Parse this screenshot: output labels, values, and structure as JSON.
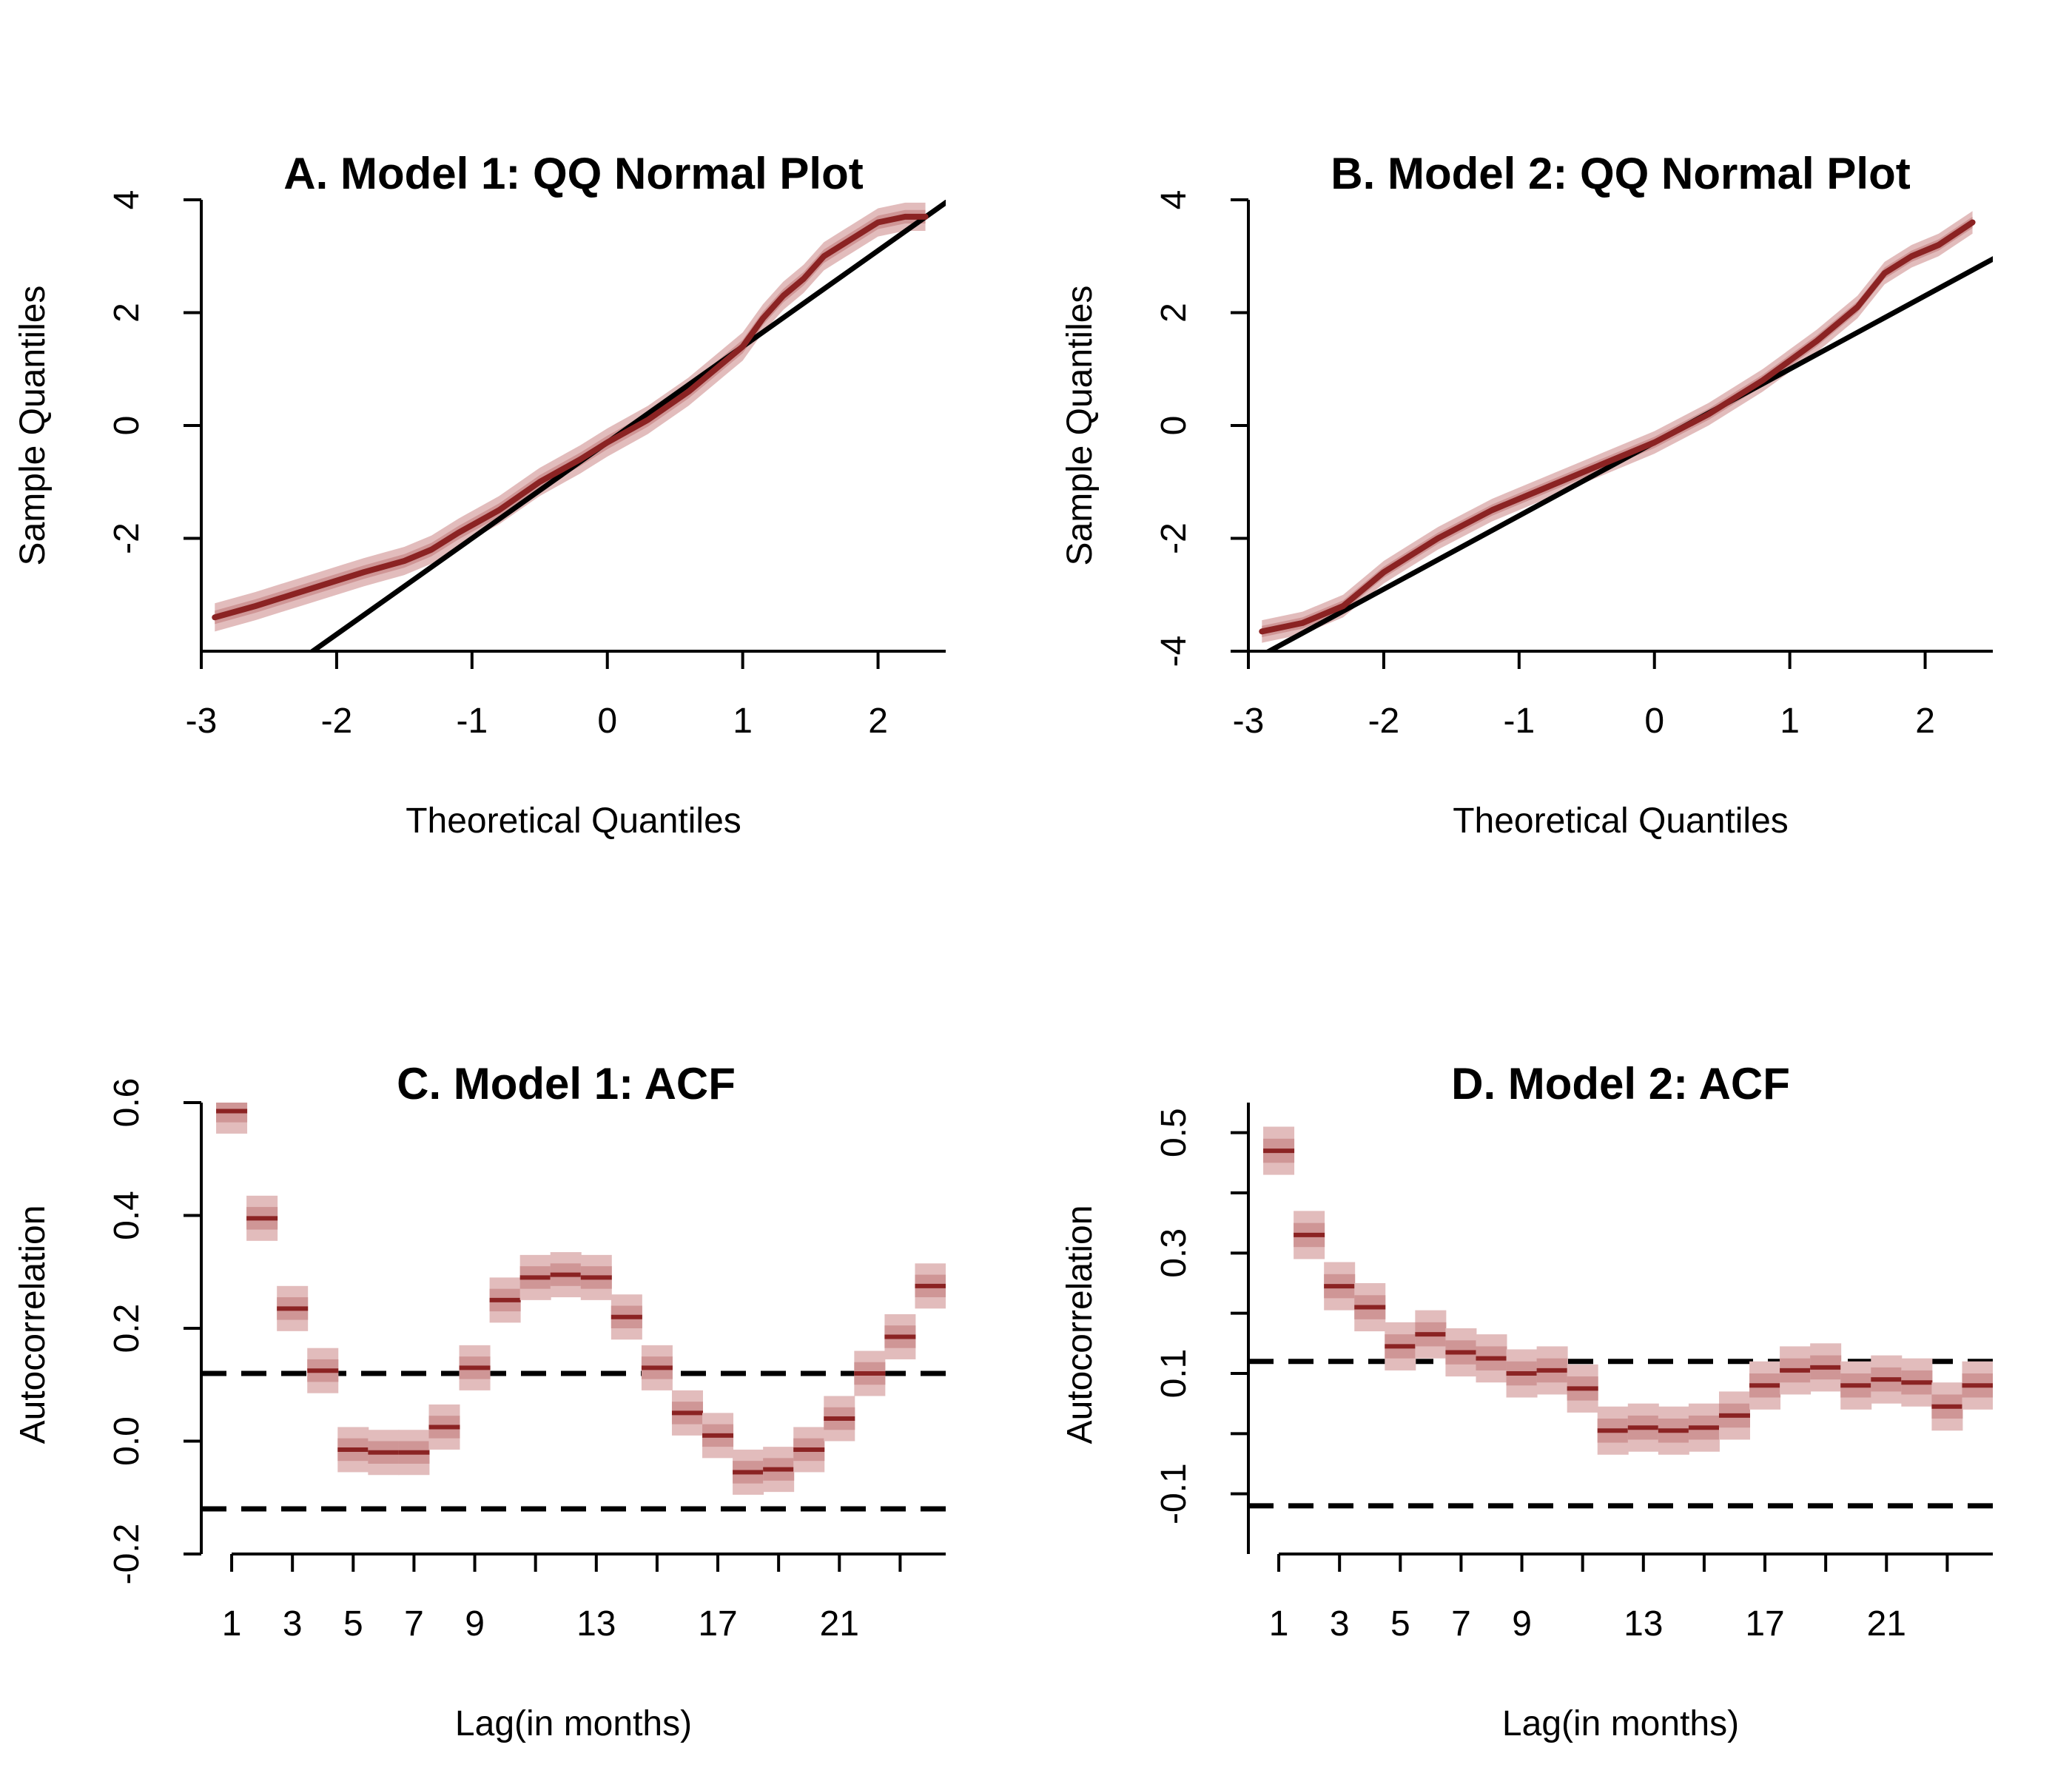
{
  "colors": {
    "series": "#8b2323",
    "band_outer": "#e2bcbc",
    "band_inner": "#cf9696",
    "reference": "#000000"
  },
  "chart_data": [
    {
      "id": "A",
      "type": "line",
      "title": "A. Model 1: QQ Normal Plot",
      "xlabel": "Theoretical Quantiles",
      "ylabel": "Sample Quantiles",
      "xlim": [
        -3,
        2.5
      ],
      "ylim": [
        -4,
        4
      ],
      "xticks": [
        -3,
        -2,
        -1,
        0,
        1,
        2
      ],
      "xtick_labels": [
        "-3",
        "-2",
        "-1",
        "0",
        "1",
        "2"
      ],
      "yticks": [
        -2,
        0,
        2,
        4
      ],
      "ytick_labels": [
        "-2",
        "0",
        "2",
        "4"
      ],
      "reference_line": {
        "intercept": -0.3,
        "slope": 1.7
      },
      "series": [
        {
          "x": [
            -2.9,
            -2.6,
            -2.2,
            -1.8,
            -1.5,
            -1.3,
            -1.1,
            -0.8,
            -0.5,
            -0.2,
            0.0,
            0.3,
            0.6,
            0.8,
            1.0,
            1.15,
            1.3,
            1.45,
            1.6,
            1.8,
            2.0,
            2.2,
            2.35
          ],
          "y": [
            -3.4,
            -3.2,
            -2.9,
            -2.6,
            -2.4,
            -2.2,
            -1.9,
            -1.5,
            -1.0,
            -0.6,
            -0.3,
            0.1,
            0.6,
            1.0,
            1.4,
            1.9,
            2.3,
            2.6,
            3.0,
            3.3,
            3.6,
            3.7,
            3.7
          ],
          "band_outer": 0.25,
          "band_inner": 0.12
        }
      ]
    },
    {
      "id": "B",
      "type": "line",
      "title": "B. Model 2: QQ Normal Plot",
      "xlabel": "Theoretical Quantiles",
      "ylabel": "Sample Quantiles",
      "xlim": [
        -3,
        2.5
      ],
      "ylim": [
        -4,
        4
      ],
      "xticks": [
        -3,
        -2,
        -1,
        0,
        1,
        2
      ],
      "xtick_labels": [
        "-3",
        "-2",
        "-1",
        "0",
        "1",
        "2"
      ],
      "yticks": [
        -4,
        -2,
        0,
        2,
        4
      ],
      "ytick_labels": [
        "-4",
        "-2",
        "0",
        "2",
        "4"
      ],
      "reference_line": {
        "intercept": -0.3,
        "slope": 1.3
      },
      "series": [
        {
          "x": [
            -2.9,
            -2.6,
            -2.3,
            -2.0,
            -1.6,
            -1.2,
            -0.8,
            -0.4,
            0.0,
            0.4,
            0.8,
            1.2,
            1.5,
            1.7,
            1.9,
            2.1,
            2.35
          ],
          "y": [
            -3.65,
            -3.5,
            -3.2,
            -2.6,
            -2.0,
            -1.5,
            -1.1,
            -0.7,
            -0.3,
            0.2,
            0.8,
            1.5,
            2.1,
            2.7,
            3.0,
            3.2,
            3.6
          ],
          "band_outer": 0.2,
          "band_inner": 0.1
        }
      ]
    },
    {
      "id": "C",
      "type": "scatter",
      "title": "C. Model 1: ACF",
      "xlabel": "Lag(in months)",
      "ylabel": "Autocorrelation",
      "xlim": [
        0,
        24.5
      ],
      "ylim": [
        -0.2,
        0.6
      ],
      "xticks": [
        1,
        3,
        5,
        7,
        9,
        11,
        13,
        15,
        17,
        19,
        21,
        23
      ],
      "xtick_labels": [
        "1",
        "3",
        "5",
        "7",
        "9",
        "",
        "13",
        "",
        "17",
        "",
        "21",
        ""
      ],
      "yticks": [
        -0.2,
        0.0,
        0.2,
        0.4,
        0.6
      ],
      "ytick_labels": [
        "-0.2",
        "0.0",
        "0.2",
        "0.4",
        "0.6"
      ],
      "confidence_bounds": [
        0.12,
        -0.12
      ],
      "series": [
        {
          "x": [
            1,
            2,
            3,
            4,
            5,
            6,
            7,
            8,
            9,
            10,
            11,
            12,
            13,
            14,
            15,
            16,
            17,
            18,
            19,
            20,
            21,
            22,
            23,
            24
          ],
          "y": [
            0.585,
            0.395,
            0.235,
            0.125,
            -0.015,
            -0.02,
            -0.02,
            0.025,
            0.13,
            0.25,
            0.29,
            0.295,
            0.29,
            0.22,
            0.13,
            0.05,
            0.01,
            -0.055,
            -0.05,
            -0.015,
            0.04,
            0.12,
            0.185,
            0.275
          ],
          "band_outer": 0.04,
          "band_inner": 0.02
        }
      ]
    },
    {
      "id": "D",
      "type": "scatter",
      "title": "D. Model 2: ACF",
      "xlabel": "Lag(in months)",
      "ylabel": "Autocorrelation",
      "xlim": [
        0,
        24.5
      ],
      "ylim": [
        -0.2,
        0.55
      ],
      "xticks": [
        1,
        3,
        5,
        7,
        9,
        11,
        13,
        15,
        17,
        19,
        21,
        23
      ],
      "xtick_labels": [
        "1",
        "3",
        "5",
        "7",
        "9",
        "",
        "13",
        "",
        "17",
        "",
        "21",
        ""
      ],
      "yticks": [
        -0.1,
        0.1,
        0.3,
        0.5
      ],
      "ytick_labels": [
        "-0.1",
        "0.1",
        "0.3",
        "0.5"
      ],
      "minor_yticks": [
        0.0,
        0.2,
        0.4
      ],
      "confidence_bounds": [
        0.12,
        -0.12
      ],
      "series": [
        {
          "x": [
            1,
            2,
            3,
            4,
            5,
            6,
            7,
            8,
            9,
            10,
            11,
            12,
            13,
            14,
            15,
            16,
            17,
            18,
            19,
            20,
            21,
            22,
            23,
            24
          ],
          "y": [
            0.47,
            0.33,
            0.245,
            0.21,
            0.145,
            0.165,
            0.135,
            0.125,
            0.1,
            0.105,
            0.075,
            0.005,
            0.01,
            0.005,
            0.01,
            0.03,
            0.08,
            0.105,
            0.11,
            0.08,
            0.09,
            0.085,
            0.045,
            0.08
          ],
          "band_outer": 0.04,
          "band_inner": 0.02
        }
      ]
    }
  ]
}
